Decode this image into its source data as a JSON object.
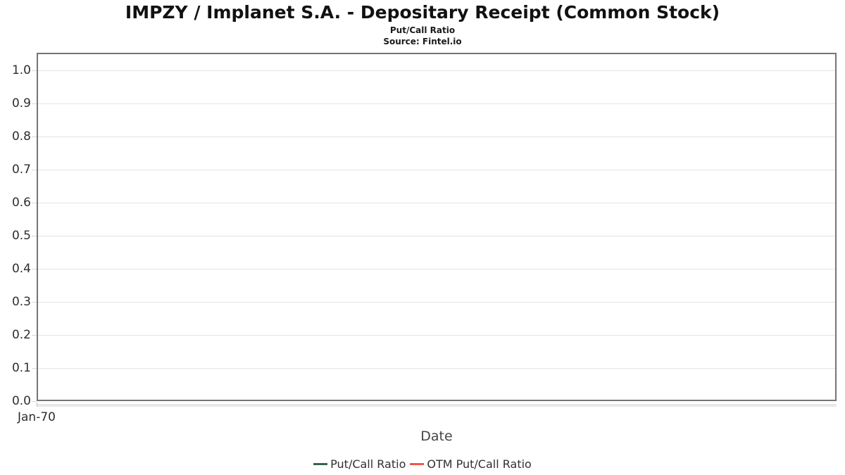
{
  "header": {
    "title": "IMPZY / Implanet S.A. - Depositary Receipt (Common Stock)",
    "subtitle": "Put/Call Ratio",
    "source": "Source: Fintel.io"
  },
  "chart_data": {
    "type": "line",
    "title": "IMPZY / Implanet S.A. - Depositary Receipt (Common Stock)",
    "subtitle": "Put/Call Ratio",
    "source": "Source: Fintel.io",
    "xlabel": "Date",
    "ylabel": "",
    "ylim": [
      0.0,
      1.055
    ],
    "grid": "horizontal",
    "legend_position": "bottom",
    "plot_empty": true,
    "yticks": [
      {
        "value": 1.0,
        "label": "1.0"
      },
      {
        "value": 0.9,
        "label": "0.9"
      },
      {
        "value": 0.8,
        "label": "0.8"
      },
      {
        "value": 0.7,
        "label": "0.7"
      },
      {
        "value": 0.6,
        "label": "0.6"
      },
      {
        "value": 0.5,
        "label": "0.5"
      },
      {
        "value": 0.4,
        "label": "0.4"
      },
      {
        "value": 0.3,
        "label": "0.3"
      },
      {
        "value": 0.2,
        "label": "0.2"
      },
      {
        "value": 0.1,
        "label": "0.1"
      },
      {
        "value": 0.0,
        "label": "0.0"
      }
    ],
    "xticks": [
      {
        "label": "Jan-70",
        "position": "left-edge"
      }
    ],
    "series": [
      {
        "name": "Put/Call Ratio",
        "color": "#34654c",
        "values": []
      },
      {
        "name": "OTM Put/Call Ratio",
        "color": "#f0574f",
        "values": []
      }
    ]
  },
  "colors": {
    "plot_border": "#757575",
    "gridline": "#e4e4e4",
    "axis_strip": "#c7c7c7",
    "text_primary": "#111111",
    "tick_text": "#2e2e2e"
  }
}
